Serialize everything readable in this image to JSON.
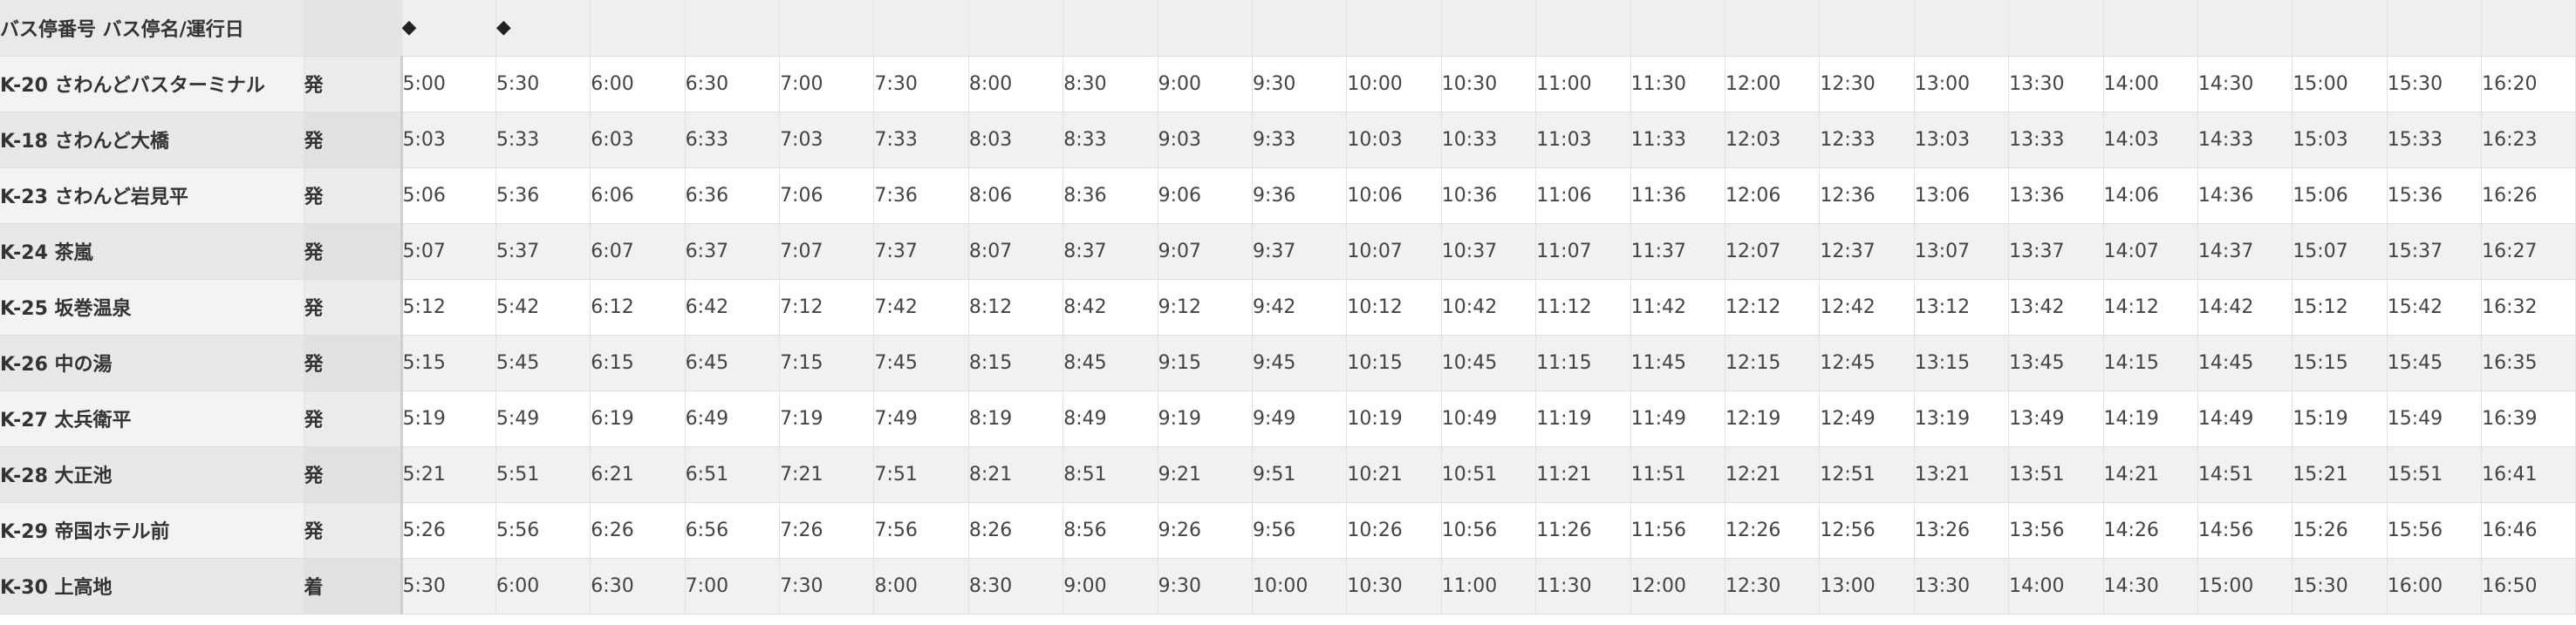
{
  "header": {
    "stop_column_label": "バス停番号 バス停名/運行日",
    "type_column_label": "",
    "markers": [
      "◆",
      "◆",
      "",
      "",
      "",
      "",
      "",
      "",
      "",
      "",
      "",
      "",
      "",
      "",
      "",
      "",
      "",
      "",
      "",
      "",
      "",
      "",
      ""
    ]
  },
  "rows": [
    {
      "stop": "K-20 さわんどバスターミナル",
      "type": "発",
      "times": [
        "5:00",
        "5:30",
        "6:00",
        "6:30",
        "7:00",
        "7:30",
        "8:00",
        "8:30",
        "9:00",
        "9:30",
        "10:00",
        "10:30",
        "11:00",
        "11:30",
        "12:00",
        "12:30",
        "13:00",
        "13:30",
        "14:00",
        "14:30",
        "15:00",
        "15:30",
        "16:20"
      ]
    },
    {
      "stop": "K-18 さわんど大橋",
      "type": "発",
      "times": [
        "5:03",
        "5:33",
        "6:03",
        "6:33",
        "7:03",
        "7:33",
        "8:03",
        "8:33",
        "9:03",
        "9:33",
        "10:03",
        "10:33",
        "11:03",
        "11:33",
        "12:03",
        "12:33",
        "13:03",
        "13:33",
        "14:03",
        "14:33",
        "15:03",
        "15:33",
        "16:23"
      ]
    },
    {
      "stop": "K-23 さわんど岩見平",
      "type": "発",
      "times": [
        "5:06",
        "5:36",
        "6:06",
        "6:36",
        "7:06",
        "7:36",
        "8:06",
        "8:36",
        "9:06",
        "9:36",
        "10:06",
        "10:36",
        "11:06",
        "11:36",
        "12:06",
        "12:36",
        "13:06",
        "13:36",
        "14:06",
        "14:36",
        "15:06",
        "15:36",
        "16:26"
      ]
    },
    {
      "stop": "K-24 茶嵐",
      "type": "発",
      "times": [
        "5:07",
        "5:37",
        "6:07",
        "6:37",
        "7:07",
        "7:37",
        "8:07",
        "8:37",
        "9:07",
        "9:37",
        "10:07",
        "10:37",
        "11:07",
        "11:37",
        "12:07",
        "12:37",
        "13:07",
        "13:37",
        "14:07",
        "14:37",
        "15:07",
        "15:37",
        "16:27"
      ]
    },
    {
      "stop": "K-25 坂巻温泉",
      "type": "発",
      "times": [
        "5:12",
        "5:42",
        "6:12",
        "6:42",
        "7:12",
        "7:42",
        "8:12",
        "8:42",
        "9:12",
        "9:42",
        "10:12",
        "10:42",
        "11:12",
        "11:42",
        "12:12",
        "12:42",
        "13:12",
        "13:42",
        "14:12",
        "14:42",
        "15:12",
        "15:42",
        "16:32"
      ]
    },
    {
      "stop": "K-26 中の湯",
      "type": "発",
      "times": [
        "5:15",
        "5:45",
        "6:15",
        "6:45",
        "7:15",
        "7:45",
        "8:15",
        "8:45",
        "9:15",
        "9:45",
        "10:15",
        "10:45",
        "11:15",
        "11:45",
        "12:15",
        "12:45",
        "13:15",
        "13:45",
        "14:15",
        "14:45",
        "15:15",
        "15:45",
        "16:35"
      ]
    },
    {
      "stop": "K-27 太兵衛平",
      "type": "発",
      "times": [
        "5:19",
        "5:49",
        "6:19",
        "6:49",
        "7:19",
        "7:49",
        "8:19",
        "8:49",
        "9:19",
        "9:49",
        "10:19",
        "10:49",
        "11:19",
        "11:49",
        "12:19",
        "12:49",
        "13:19",
        "13:49",
        "14:19",
        "14:49",
        "15:19",
        "15:49",
        "16:39"
      ]
    },
    {
      "stop": "K-28 大正池",
      "type": "発",
      "times": [
        "5:21",
        "5:51",
        "6:21",
        "6:51",
        "7:21",
        "7:51",
        "8:21",
        "8:51",
        "9:21",
        "9:51",
        "10:21",
        "10:51",
        "11:21",
        "11:51",
        "12:21",
        "12:51",
        "13:21",
        "13:51",
        "14:21",
        "14:51",
        "15:21",
        "15:51",
        "16:41"
      ]
    },
    {
      "stop": "K-29 帝国ホテル前",
      "type": "発",
      "times": [
        "5:26",
        "5:56",
        "6:26",
        "6:56",
        "7:26",
        "7:56",
        "8:26",
        "8:56",
        "9:26",
        "9:56",
        "10:26",
        "10:56",
        "11:26",
        "11:56",
        "12:26",
        "12:56",
        "13:26",
        "13:56",
        "14:26",
        "14:56",
        "15:26",
        "15:56",
        "16:46"
      ]
    },
    {
      "stop": "K-30 上高地",
      "type": "着",
      "times": [
        "5:30",
        "6:00",
        "6:30",
        "7:00",
        "7:30",
        "8:00",
        "8:30",
        "9:00",
        "9:30",
        "10:00",
        "10:30",
        "11:00",
        "11:30",
        "12:00",
        "12:30",
        "13:00",
        "13:30",
        "14:00",
        "14:30",
        "15:00",
        "15:30",
        "16:00",
        "16:50"
      ]
    }
  ]
}
